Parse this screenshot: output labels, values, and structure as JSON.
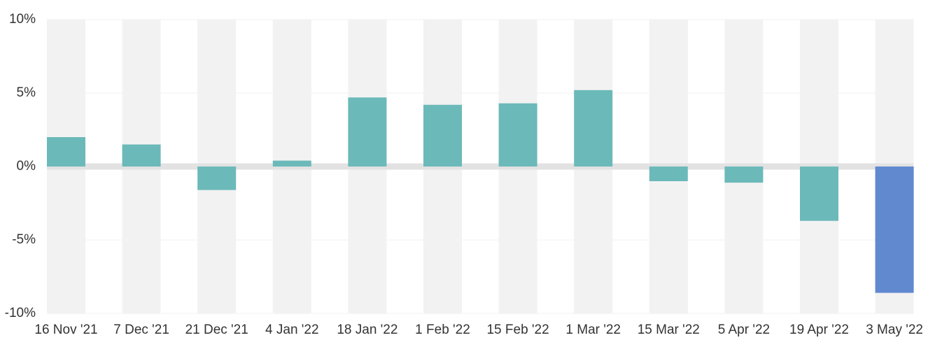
{
  "chart_data": {
    "type": "bar",
    "categories": [
      "16 Nov '21",
      "7 Dec '21",
      "21 Dec '21",
      "4 Jan '22",
      "18 Jan '22",
      "1 Feb '22",
      "15 Feb '22",
      "1 Mar '22",
      "15 Mar '22",
      "5 Apr '22",
      "19 Apr '22",
      "3 May '22"
    ],
    "values": [
      2.0,
      1.5,
      -1.6,
      0.4,
      4.7,
      4.2,
      4.3,
      5.2,
      -1.0,
      -1.1,
      -3.7,
      -8.6
    ],
    "colors": [
      "#6cb9b9",
      "#6cb9b9",
      "#6cb9b9",
      "#6cb9b9",
      "#6cb9b9",
      "#6cb9b9",
      "#6cb9b9",
      "#6cb9b9",
      "#6cb9b9",
      "#6cb9b9",
      "#6cb9b9",
      "#6089d0"
    ],
    "ylim": [
      -10,
      10
    ],
    "yticks": [
      {
        "value": -10,
        "label": "-10%"
      },
      {
        "value": -5,
        "label": "-5%"
      },
      {
        "value": 0,
        "label": "0%"
      },
      {
        "value": 5,
        "label": "5%"
      },
      {
        "value": 10,
        "label": "10%"
      }
    ],
    "grid": true
  }
}
